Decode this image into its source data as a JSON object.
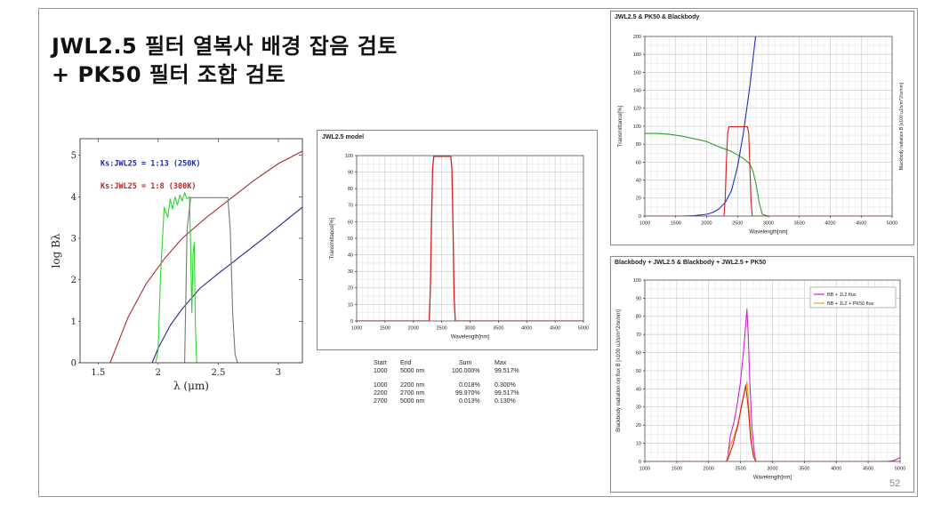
{
  "slide": {
    "title_line1": "JWL2.5 필터 열복사 배경 잡음 검토",
    "title_line2": "+ PK50 필터 조합 검토",
    "page_number": "52"
  },
  "chart_data": [
    {
      "id": "logB",
      "type": "line",
      "xlabel": "λ (μm)",
      "ylabel": "log Bλ",
      "xlim": [
        1.35,
        3.2
      ],
      "ylim": [
        0,
        5.4
      ],
      "xticks": [
        1.5,
        2,
        2.5,
        3
      ],
      "yticks": [
        0,
        1,
        2,
        3,
        4,
        5
      ],
      "annotations": [
        {
          "text": "Ks:JWL25 = 1:13 (250K)",
          "color": "#1c2aa8",
          "x": 1.52,
          "y": 4.75
        },
        {
          "text": "Ks:JWL25 = 1:8 (300K)",
          "color": "#c02020",
          "x": 1.52,
          "y": 4.2
        }
      ],
      "series": [
        {
          "color": "#b02828",
          "x": [
            1.6,
            1.75,
            1.9,
            2.05,
            2.2,
            2.4,
            2.6,
            2.8,
            3.0,
            3.2
          ],
          "y": [
            0.0,
            1.1,
            1.9,
            2.5,
            3.0,
            3.5,
            3.95,
            4.4,
            4.8,
            5.1
          ]
        },
        {
          "color": "#27278a",
          "x": [
            1.95,
            2.0,
            2.1,
            2.2,
            2.35,
            2.5,
            2.7,
            2.9,
            3.05,
            3.2
          ],
          "y": [
            0.0,
            0.35,
            0.9,
            1.3,
            1.8,
            2.15,
            2.6,
            3.05,
            3.4,
            3.75
          ]
        },
        {
          "color": "#2ed52e",
          "x": [
            1.98,
            2.0,
            2.02,
            2.05,
            2.08,
            2.1,
            2.12,
            2.14,
            2.16,
            2.18,
            2.2,
            2.22,
            2.24,
            2.26,
            2.27,
            2.28,
            2.29,
            2.3,
            2.31,
            2.32
          ],
          "y": [
            0.0,
            0.3,
            2.1,
            3.75,
            3.5,
            3.95,
            3.7,
            4.0,
            3.8,
            4.05,
            3.9,
            4.1,
            3.95,
            4.0,
            2.8,
            1.2,
            2.6,
            2.9,
            0.9,
            0.0
          ]
        },
        {
          "color": "#777777",
          "x": [
            2.22,
            2.24,
            2.27,
            2.56,
            2.58,
            2.6,
            2.62,
            2.64,
            2.66
          ],
          "y": [
            0.0,
            3.2,
            3.98,
            3.98,
            3.98,
            3.2,
            1.2,
            0.2,
            0.0
          ]
        }
      ]
    },
    {
      "id": "jwl",
      "type": "line",
      "title": "JWL2.5 model",
      "xlabel": "Wavelength[nm]",
      "ylabel": "Transmittance[%]",
      "xlim": [
        1000,
        5000
      ],
      "ylim": [
        0,
        100
      ],
      "xticks": [
        1000,
        1500,
        2000,
        2500,
        3000,
        3500,
        4000,
        4500,
        5000
      ],
      "yticks": [
        0,
        10,
        20,
        30,
        40,
        50,
        60,
        70,
        80,
        90,
        100
      ],
      "series": [
        {
          "color": "#d42020",
          "x": [
            1000,
            2280,
            2300,
            2320,
            2340,
            2360,
            2660,
            2680,
            2700,
            2720,
            2740,
            5000
          ],
          "y": [
            0,
            0,
            20,
            60,
            92,
            99.5,
            99.5,
            92,
            55,
            15,
            0,
            0
          ]
        }
      ]
    },
    {
      "id": "bb",
      "type": "line",
      "title": "JWL2.5 & PK50 & Blackbody",
      "xlabel": "Wavelength[nm]",
      "ylabel": "Transmittance[%]",
      "ylabel2": "Blackbody radiation B [x100 uJ/s/m^2/sr/nm]",
      "xlim": [
        1000,
        5000
      ],
      "ylim": [
        0,
        200
      ],
      "xticks": [
        1000,
        1500,
        2000,
        2500,
        3000,
        3500,
        4000,
        4500,
        5000
      ],
      "yticks": [
        0,
        20,
        40,
        60,
        80,
        100,
        120,
        140,
        160,
        180,
        200
      ],
      "series": [
        {
          "color": "#2ca02c",
          "x": [
            1000,
            1200,
            1400,
            1600,
            1800,
            2000,
            2200,
            2400,
            2500,
            2600,
            2700,
            2750,
            2800,
            2850,
            2900,
            3000,
            5000
          ],
          "y": [
            92,
            92,
            91,
            89,
            86,
            83,
            77,
            72,
            68,
            64,
            58,
            50,
            35,
            15,
            2,
            0,
            0
          ]
        },
        {
          "color": "#1f2fc8",
          "x": [
            1000,
            1600,
            1800,
            2000,
            2100,
            2200,
            2300,
            2400,
            2500,
            2600,
            2700,
            2800
          ],
          "y": [
            0,
            0,
            0.5,
            2,
            4,
            8,
            15,
            28,
            55,
            95,
            145,
            205
          ]
        },
        {
          "color": "#d42020",
          "x": [
            1000,
            2280,
            2300,
            2320,
            2340,
            2360,
            2660,
            2680,
            2700,
            2720,
            2740,
            5000
          ],
          "y": [
            0,
            0,
            20,
            60,
            92,
            99.5,
            99.5,
            92,
            55,
            15,
            0,
            0
          ]
        }
      ]
    },
    {
      "id": "flux",
      "type": "line",
      "title": "Blackbody + JWL2.5 & Blackbody + JWL2.5 + PK50",
      "xlabel": "Wavelength[nm]",
      "ylabel": "Blackbody radiation on flux B [x100 uJ/s/m^2/sr/nm]",
      "xlim": [
        1000,
        5000
      ],
      "ylim": [
        0,
        100
      ],
      "xticks": [
        1000,
        1500,
        2000,
        2500,
        3000,
        3500,
        4000,
        4500,
        5000
      ],
      "yticks": [
        0,
        10,
        20,
        30,
        40,
        50,
        60,
        70,
        80,
        90,
        100
      ],
      "legend": {
        "position": "top-right",
        "entries": [
          "BB + JL2 flux",
          "BB + JL2 + PK50 flux"
        ]
      },
      "series": [
        {
          "name": "BB + JL2 flux",
          "color": "#cc22cc",
          "x": [
            1000,
            2280,
            2300,
            2340,
            2400,
            2450,
            2500,
            2550,
            2600,
            2620,
            2650,
            2680,
            2720,
            2740,
            4800,
            4900,
            5000
          ],
          "y": [
            0,
            0,
            3,
            14,
            22,
            32,
            44,
            62,
            84,
            70,
            40,
            18,
            4,
            0,
            0,
            0.5,
            2
          ]
        },
        {
          "name": "BB + JL2 + PK50 flux",
          "color": "#f0a020",
          "x": [
            1000,
            2280,
            2300,
            2340,
            2400,
            2450,
            2500,
            2550,
            2600,
            2620,
            2650,
            2680,
            2720,
            2740,
            5000
          ],
          "y": [
            0,
            0,
            2,
            9,
            14,
            20,
            27,
            36,
            44,
            36,
            20,
            8,
            2,
            0,
            0
          ]
        },
        {
          "color": "#d42020",
          "x": [
            1000,
            2280,
            2300,
            2340,
            2380,
            2420,
            2460,
            2500,
            2540,
            2580,
            2620,
            2660,
            2700,
            2740,
            5000
          ],
          "y": [
            0,
            0,
            1,
            5,
            9,
            15,
            20,
            28,
            35,
            42,
            30,
            12,
            3,
            0,
            0
          ]
        }
      ]
    }
  ],
  "stats_table": {
    "headers": [
      "Start",
      "End",
      "Sum",
      "Max"
    ],
    "rows": [
      [
        "1000",
        "5000 nm",
        "100.000%",
        "99.517%"
      ],
      [
        "1000",
        "2200 nm",
        "0.018%",
        "0.300%"
      ],
      [
        "2200",
        "2700 nm",
        "99.970%",
        "99.517%"
      ],
      [
        "2700",
        "5000 nm",
        "0.013%",
        "0.130%"
      ]
    ]
  }
}
